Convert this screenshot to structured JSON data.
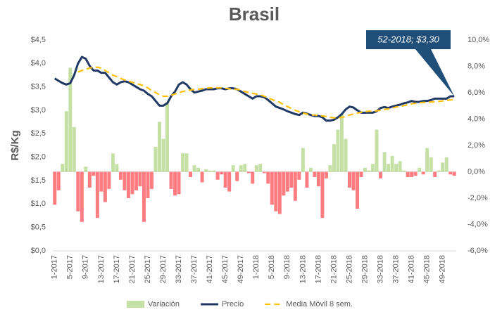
{
  "chart_data": {
    "type": "bar-line",
    "title": "Brasil",
    "y_label": "R$/Kg",
    "annotation": "52-2018; $3,30",
    "categories": [
      "1-2017",
      null,
      null,
      null,
      "5-2017",
      null,
      null,
      null,
      "9-2017",
      null,
      null,
      null,
      "13-2017",
      null,
      null,
      null,
      "17-2017",
      null,
      null,
      null,
      "21-2017",
      null,
      null,
      null,
      "25-2017",
      null,
      null,
      null,
      "29-2017",
      null,
      null,
      null,
      "33-2017",
      null,
      null,
      null,
      "37-2017",
      null,
      null,
      null,
      "41-2017",
      null,
      null,
      null,
      "45-2017",
      null,
      null,
      null,
      "49-2017",
      null,
      null,
      null,
      "1-2018",
      null,
      null,
      null,
      "5-2018",
      null,
      null,
      null,
      "9-2018",
      null,
      null,
      null,
      "13-2018",
      null,
      null,
      null,
      "17-2018",
      null,
      null,
      null,
      "21-2018",
      null,
      null,
      null,
      "25-2018",
      null,
      null,
      null,
      "29-2018",
      null,
      null,
      null,
      "33-2018",
      null,
      null,
      null,
      "37-2018",
      null,
      null,
      null,
      "41-2018",
      null,
      null,
      null,
      "45-2018",
      null,
      null,
      null,
      "49-2018",
      null,
      null,
      null
    ],
    "series": [
      {
        "name": "Variación",
        "type": "bar",
        "axis": "y2",
        "color": "#c5e0a5",
        "negative_color": "#ff7c80",
        "values": [
          -2.5,
          -1.4,
          0.6,
          4.6,
          7.9,
          3.4,
          -3.0,
          -3.8,
          0.4,
          -1.2,
          -0.3,
          -3.5,
          -1.5,
          -2.3,
          -1.3,
          1.4,
          0.6,
          -0.6,
          -1.4,
          -2.0,
          -1.7,
          -1.4,
          -1.1,
          -3.8,
          -2.0,
          -1.3,
          1.9,
          3.8,
          2.5,
          5.3,
          -1.3,
          -1.8,
          -1.7,
          1.4,
          1.4,
          -0.4,
          0.5,
          0.3,
          -0.8,
          0.2,
          0.1,
          0.1,
          -0.6,
          -0.2,
          -1.2,
          -1.5,
          0.5,
          -0.7,
          0.5,
          0.6,
          -0.1,
          -0.9,
          0.5,
          0.6,
          -0.1,
          -0.9,
          -2.5,
          -3.0,
          -3.2,
          -1.8,
          -1.5,
          -1.2,
          -2.2,
          -0.6,
          1.8,
          -1.2,
          0.3,
          -0.4,
          -1.1,
          -3.5,
          -0.5,
          0.5,
          2.1,
          3.2,
          4.4,
          2.5,
          -1.2,
          -1.4,
          -2.8,
          -0.4,
          0.3,
          0.1,
          0.6,
          3.2,
          -0.5,
          1.5,
          0.6,
          1.2,
          0.6,
          0.8,
          0.1,
          -0.4,
          -0.4,
          -0.3,
          0.3,
          -0.2,
          1.8,
          1.1,
          -0.4,
          0.1,
          0.7,
          1.1,
          -0.2,
          -0.3
        ]
      },
      {
        "name": "Precio",
        "type": "line",
        "color": "#1f3864",
        "dashed": false,
        "values": [
          3.68,
          3.63,
          3.58,
          3.55,
          3.58,
          3.75,
          4.0,
          4.14,
          4.1,
          3.95,
          3.85,
          3.85,
          3.8,
          3.8,
          3.7,
          3.6,
          3.55,
          3.6,
          3.62,
          3.6,
          3.55,
          3.5,
          3.45,
          3.42,
          3.35,
          3.3,
          3.2,
          3.1,
          3.1,
          3.15,
          3.3,
          3.4,
          3.55,
          3.6,
          3.55,
          3.45,
          3.38,
          3.4,
          3.42,
          3.45,
          3.45,
          3.45,
          3.47,
          3.47,
          3.45,
          3.47,
          3.47,
          3.45,
          3.4,
          3.35,
          3.3,
          3.25,
          3.3,
          3.3,
          3.28,
          3.22,
          3.15,
          3.08,
          3.05,
          3.02,
          2.98,
          2.95,
          2.92,
          2.9,
          2.95,
          2.93,
          2.9,
          2.88,
          2.88,
          2.85,
          2.78,
          2.78,
          2.8,
          2.85,
          2.92,
          3.02,
          3.08,
          3.06,
          3.0,
          2.95,
          2.95,
          2.95,
          2.95,
          2.98,
          3.05,
          3.07,
          3.05,
          3.08,
          3.1,
          3.12,
          3.15,
          3.17,
          3.2,
          3.18,
          3.18,
          3.2,
          3.2,
          3.22,
          3.25,
          3.25,
          3.25,
          3.25,
          3.3,
          3.3
        ]
      },
      {
        "name": "Media Móvil 8 sem.",
        "type": "line",
        "color": "#ffc000",
        "dashed": true,
        "values": [
          null,
          null,
          null,
          null,
          null,
          null,
          3.82,
          3.85,
          3.88,
          3.9,
          3.92,
          3.92,
          3.9,
          3.85,
          3.8,
          3.75,
          3.72,
          3.68,
          3.65,
          3.62,
          3.6,
          3.57,
          3.55,
          3.52,
          3.48,
          3.42,
          3.38,
          3.33,
          3.3,
          3.3,
          3.32,
          3.35,
          3.38,
          3.4,
          3.42,
          3.43,
          3.45,
          3.45,
          3.46,
          3.47,
          3.48,
          3.48,
          3.48,
          3.48,
          3.47,
          3.46,
          3.45,
          3.45,
          3.43,
          3.4,
          3.38,
          3.36,
          3.35,
          3.33,
          3.3,
          3.27,
          3.23,
          3.2,
          3.17,
          3.12,
          3.08,
          3.04,
          3.0,
          2.97,
          2.94,
          2.92,
          2.9,
          2.9,
          2.89,
          2.88,
          2.87,
          2.85,
          2.84,
          2.84,
          2.85,
          2.87,
          2.9,
          2.92,
          2.94,
          2.96,
          2.97,
          2.98,
          2.98,
          2.99,
          3.0,
          3.02,
          3.03,
          3.05,
          3.07,
          3.08,
          3.1,
          3.12,
          3.14,
          3.15,
          3.16,
          3.17,
          3.17,
          3.18,
          3.18,
          3.19,
          3.2,
          3.21,
          3.22,
          3.23
        ]
      }
    ],
    "ylim": [
      0,
      4.5
    ],
    "yticks": [
      {
        "value": 0,
        "label": "$0,0"
      },
      {
        "value": 0.5,
        "label": "$0,5"
      },
      {
        "value": 1,
        "label": "$1,0"
      },
      {
        "value": 1.5,
        "label": "$1,5"
      },
      {
        "value": 2,
        "label": "$2,0"
      },
      {
        "value": 2.5,
        "label": "$2,5"
      },
      {
        "value": 3,
        "label": "$3,0"
      },
      {
        "value": 3.5,
        "label": "$3,5"
      },
      {
        "value": 4,
        "label": "$4,0"
      },
      {
        "value": 4.5,
        "label": "$4,5"
      }
    ],
    "y2lim": [
      -6,
      10
    ],
    "y2ticks": [
      {
        "value": -6,
        "label": "-6,0%"
      },
      {
        "value": -4,
        "label": "-4,0%"
      },
      {
        "value": -2,
        "label": "-2,0%"
      },
      {
        "value": 0,
        "label": "0,0%"
      },
      {
        "value": 2,
        "label": "2,0%"
      },
      {
        "value": 4,
        "label": "4,0%"
      },
      {
        "value": 6,
        "label": "6,0%"
      },
      {
        "value": 8,
        "label": "8,0%"
      },
      {
        "value": 10,
        "label": "10,0%"
      }
    ],
    "grid": false,
    "legend": "bottom"
  }
}
